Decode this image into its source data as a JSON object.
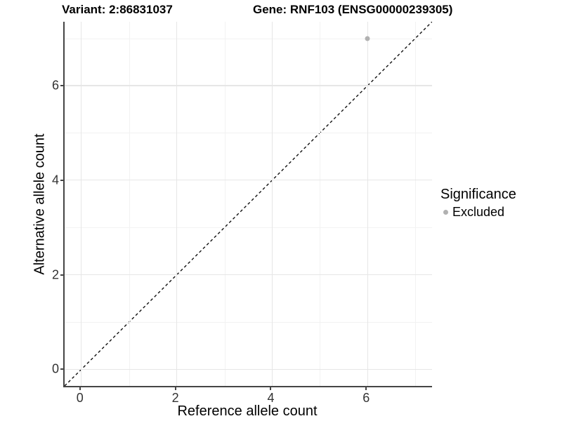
{
  "header": {
    "variant_title": "Variant: 2:86831037",
    "gene_title": "Gene: RNF103 (ENSG00000239305)"
  },
  "chart_data": {
    "type": "scatter",
    "title": "Variant: 2:86831037   Gene: RNF103 (ENSG00000239305)",
    "xlabel": "Reference allele count",
    "ylabel": "Alternative allele count",
    "xlim": [
      -0.35,
      7.35
    ],
    "ylim": [
      -0.35,
      7.35
    ],
    "x_ticks": [
      0,
      2,
      4,
      6
    ],
    "y_ticks": [
      0,
      2,
      4,
      6
    ],
    "x_minor_gridlines": [
      1,
      3,
      5,
      7
    ],
    "y_minor_gridlines": [
      1,
      3,
      5,
      7
    ],
    "grid": true,
    "points": [
      {
        "x": 6,
        "y": 7,
        "series": "Excluded"
      }
    ],
    "reference_line": {
      "type": "identity y=x",
      "style": "dashed",
      "from": [
        -0.35,
        -0.35
      ],
      "to": [
        7.35,
        7.35
      ]
    },
    "legend": {
      "title": "Significance",
      "position": "right",
      "entries": [
        {
          "label": "Excluded",
          "color": "#b1b1b1"
        }
      ]
    },
    "colors": {
      "excluded_point": "#b1b1b1",
      "grid_major": "#e6e6e6",
      "grid_minor": "#f2f2f2",
      "axis_line": "#454545",
      "dashed_line": "#111111",
      "tick_label": "#333333"
    }
  }
}
